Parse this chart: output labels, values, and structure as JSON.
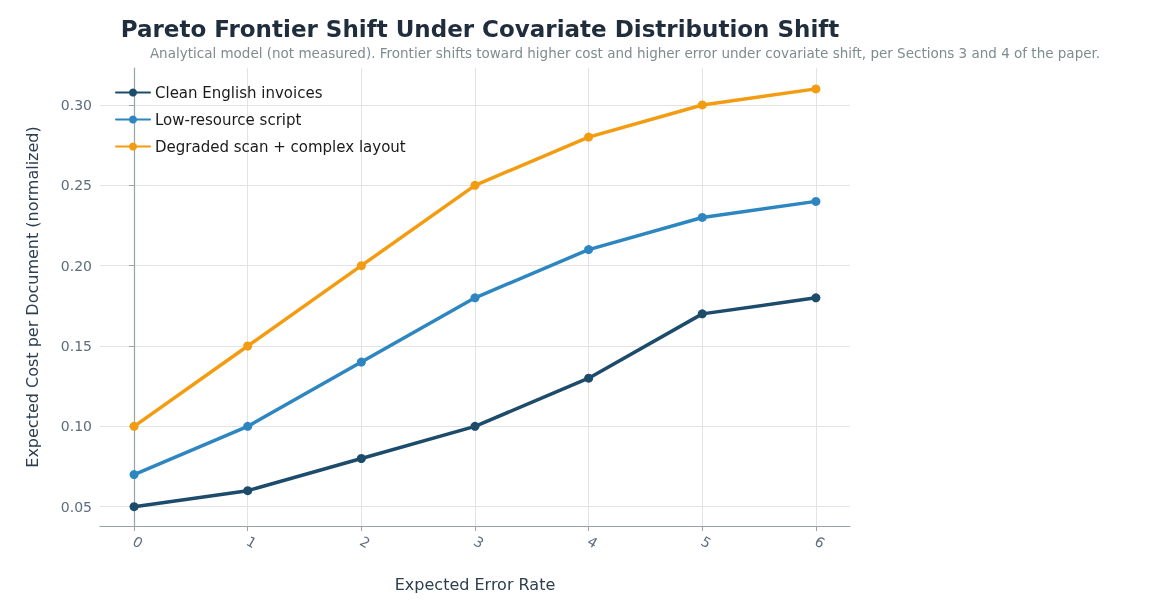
{
  "chart_data": {
    "type": "line",
    "title": "Pareto Frontier Shift Under Covariate Distribution Shift",
    "subtitle": "Analytical model (not measured). Frontier shifts toward higher cost and higher error under covariate shift, per Sections 3 and 4 of the paper.",
    "xlabel": "Expected Error Rate",
    "ylabel": "Expected Cost per Document (normalized)",
    "x": [
      0,
      1,
      2,
      3,
      4,
      5,
      6
    ],
    "series": [
      {
        "name": "Clean English invoices",
        "color": "#1c4b6b",
        "values": [
          0.05,
          0.06,
          0.08,
          0.1,
          0.13,
          0.17,
          0.18
        ]
      },
      {
        "name": "Low-resource script",
        "color": "#2e86c1",
        "values": [
          0.07,
          0.1,
          0.14,
          0.18,
          0.21,
          0.23,
          0.24
        ]
      },
      {
        "name": "Degraded scan + complex layout",
        "color": "#f39c12",
        "values": [
          0.1,
          0.15,
          0.2,
          0.25,
          0.28,
          0.3,
          0.31
        ]
      }
    ],
    "xlim": [
      -0.3,
      6.3
    ],
    "xticks": [
      0,
      1,
      2,
      3,
      4,
      5,
      6
    ],
    "ylim": [
      0.038,
      0.323
    ],
    "yticks": [
      0.05,
      {
        "value": 0.1,
        "label": "0.10"
      },
      0.15,
      {
        "value": 0.2,
        "label": "0.20"
      },
      0.25,
      {
        "value": 0.3,
        "label": "0.30"
      }
    ],
    "grid": true,
    "legend": "top left",
    "marker": "circle",
    "line_style": "solid"
  }
}
